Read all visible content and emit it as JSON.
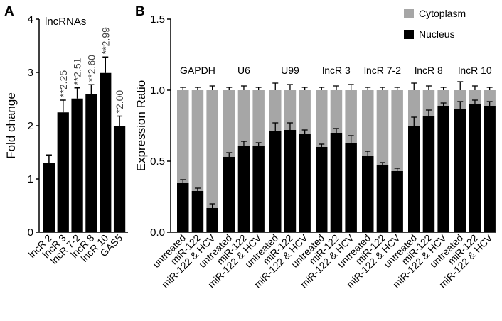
{
  "panel_a_letter": "A",
  "panel_b_letter": "B",
  "chart_data": [
    {
      "type": "bar",
      "panel": "A",
      "title": "lncRNAs",
      "xlabel": "",
      "ylabel": "Fold change",
      "ylim": [
        0,
        4
      ],
      "yticks": [
        "0",
        "1",
        "2",
        "3",
        "4"
      ],
      "categories": [
        "lncR 2",
        "lncR 3",
        "lncR 7-2",
        "lncR 8",
        "lncR 10",
        "GAS5"
      ],
      "values": [
        1.3,
        2.25,
        2.51,
        2.6,
        2.99,
        2.0
      ],
      "errors": [
        0.15,
        0.23,
        0.2,
        0.17,
        0.3,
        0.18
      ],
      "value_labels": [
        "",
        "**2.25",
        "**2.51",
        "**2.60",
        "**2.99",
        "*2.00"
      ],
      "color": "#000000"
    },
    {
      "type": "bar",
      "stacked": true,
      "panel": "B",
      "title": "",
      "xlabel": "",
      "ylabel": "Expression Ratio",
      "ylim": [
        0,
        1.5
      ],
      "yticks": [
        "0.0",
        "0.5",
        "1.0",
        "1.5"
      ],
      "groups": [
        "GAPDH",
        "U6",
        "U99",
        "lncR 3",
        "lncR 7-2",
        "lncR 8",
        "lncR 10"
      ],
      "conditions": [
        "untreated",
        "miR-122",
        "miR-122 & HCV"
      ],
      "legend": [
        "Cytoplasm",
        "Nucleus"
      ],
      "legend_position": "top-right",
      "series_colors": {
        "Cytoplasm": "#a6a6a6",
        "Nucleus": "#000000"
      },
      "total": 1.0,
      "total_error": 0.025,
      "nucleus": [
        [
          0.35,
          0.29,
          0.17
        ],
        [
          0.53,
          0.61,
          0.61
        ],
        [
          0.71,
          0.72,
          0.69
        ],
        [
          0.6,
          0.7,
          0.63
        ],
        [
          0.54,
          0.47,
          0.43
        ],
        [
          0.75,
          0.82,
          0.89
        ],
        [
          0.87,
          0.9,
          0.89
        ]
      ],
      "nucleus_error": [
        [
          0.02,
          0.02,
          0.03
        ],
        [
          0.03,
          0.03,
          0.02
        ],
        [
          0.06,
          0.05,
          0.03
        ],
        [
          0.02,
          0.03,
          0.05
        ],
        [
          0.03,
          0.02,
          0.02
        ],
        [
          0.06,
          0.04,
          0.02
        ],
        [
          0.05,
          0.03,
          0.03
        ]
      ],
      "total_error_by_group": [
        [
          0.02,
          0.02,
          0.03
        ],
        [
          0.02,
          0.03,
          0.02
        ],
        [
          0.05,
          0.04,
          0.02
        ],
        [
          0.02,
          0.03,
          0.04
        ],
        [
          0.02,
          0.02,
          0.02
        ],
        [
          0.05,
          0.03,
          0.02
        ],
        [
          0.06,
          0.03,
          0.02
        ]
      ]
    }
  ]
}
